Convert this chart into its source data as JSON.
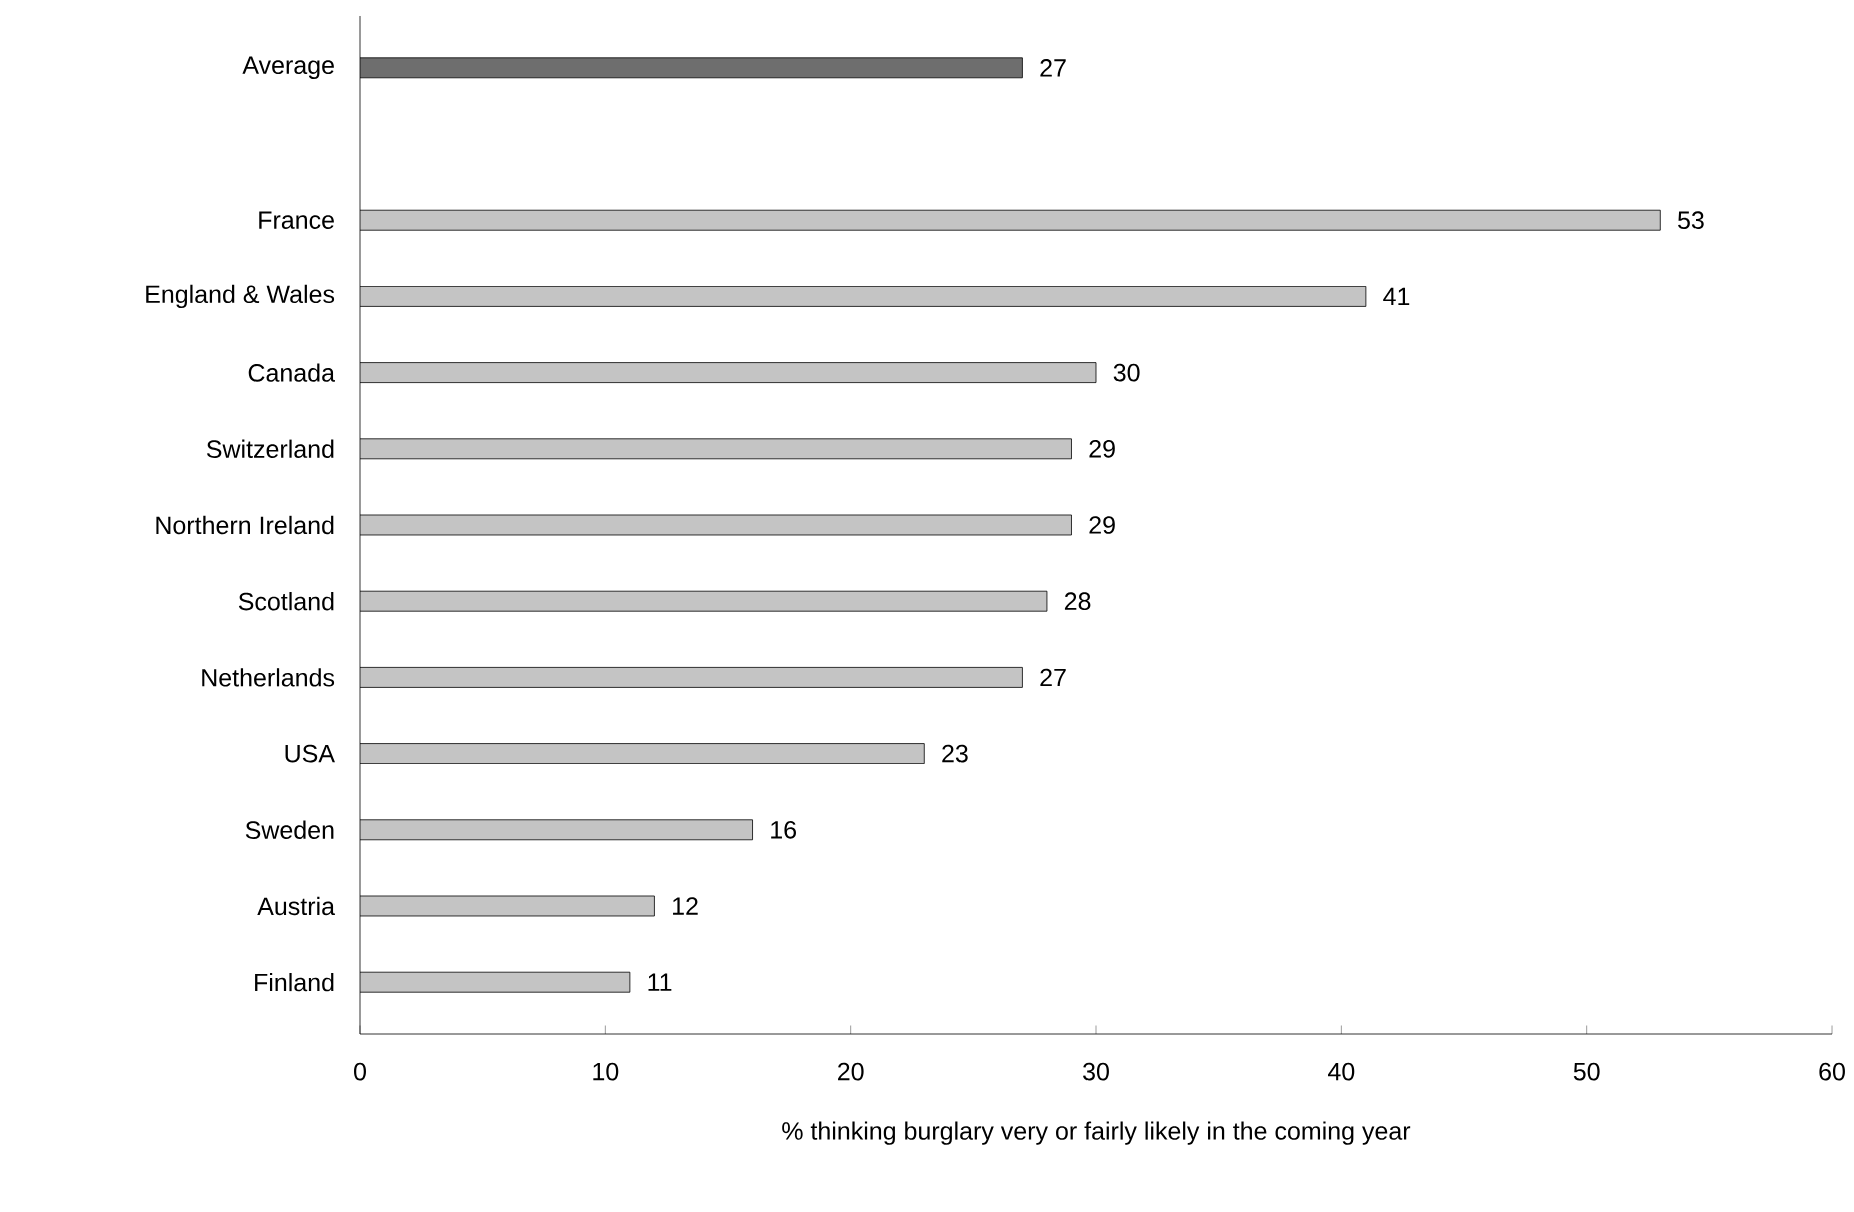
{
  "chart_data": {
    "type": "bar",
    "orientation": "horizontal",
    "xlabel": "% thinking burglary very or fairly likely in the coming year",
    "categories": [
      "Average",
      null,
      "France",
      "England & Wales",
      "Canada",
      "Switzerland",
      "Northern Ireland",
      "Scotland",
      "Netherlands",
      "USA",
      "Sweden",
      "Austria",
      "Finland"
    ],
    "values": [
      27,
      null,
      53,
      41,
      30,
      29,
      29,
      28,
      27,
      23,
      16,
      12,
      11
    ],
    "colors": [
      "#6e6e6e",
      null,
      "#c4c4c4",
      "#c4c4c4",
      "#c4c4c4",
      "#c4c4c4",
      "#c4c4c4",
      "#c4c4c4",
      "#c4c4c4",
      "#c4c4c4",
      "#c4c4c4",
      "#c4c4c4",
      "#c4c4c4"
    ],
    "xlim": [
      0,
      60
    ],
    "xticks": [
      0,
      10,
      20,
      30,
      40,
      50,
      60
    ],
    "data_labels": true,
    "grid": false
  }
}
